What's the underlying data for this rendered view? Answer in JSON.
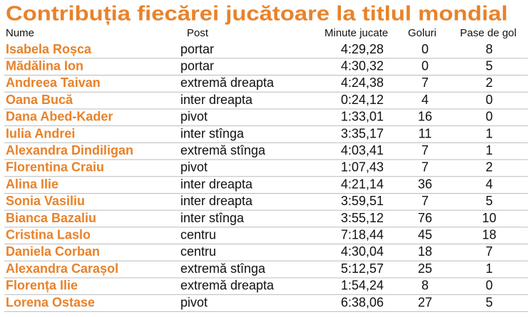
{
  "header": {
    "title": "Contribuția fiecărei jucătoare la titlul mondial"
  },
  "table": {
    "columns": [
      "Nume",
      "Post",
      "Minute jucate",
      "Goluri",
      "Pase de gol"
    ],
    "rows": [
      [
        "Isabela Roșca",
        "portar",
        "4:29,28",
        "0",
        "8"
      ],
      [
        "Mădălina Ion",
        "portar",
        "4:30,32",
        "0",
        "5"
      ],
      [
        "Andreea Taivan",
        "extremă dreapta",
        "4:24,38",
        "7",
        "2"
      ],
      [
        "Oana Bucă",
        "inter dreapta",
        "0:24,12",
        "4",
        "0"
      ],
      [
        "Dana Abed-Kader",
        "pivot",
        "1:33,01",
        "16",
        "0"
      ],
      [
        "Iulia Andrei",
        "inter stînga",
        "3:35,17",
        "11",
        "1"
      ],
      [
        "Alexandra Dindiligan",
        "extremă stînga",
        "4:03,41",
        "7",
        "1"
      ],
      [
        "Florentina Craiu",
        "pivot",
        "1:07,43",
        "7",
        "2"
      ],
      [
        "Alina Ilie",
        "inter dreapta",
        "4:21,14",
        "36",
        "4"
      ],
      [
        "Sonia Vasiliu",
        "inter dreapta",
        "3:59,51",
        "7",
        "5"
      ],
      [
        "Bianca Bazaliu",
        "inter stînga",
        "3:55,12",
        "76",
        "10"
      ],
      [
        "Cristina Laslo",
        "centru",
        "7:18,44",
        "45",
        "18"
      ],
      [
        "Daniela Corban",
        "centru",
        "4:30,04",
        "18",
        "7"
      ],
      [
        "Alexandra Carașol",
        "extremă stînga",
        "5:12,57",
        "25",
        "1"
      ],
      [
        "Florența Ilie",
        "extremă dreapta",
        "1:54,24",
        "8",
        "0"
      ],
      [
        "Lorena Ostase",
        "pivot",
        "6:38,06",
        "27",
        "5"
      ]
    ]
  }
}
